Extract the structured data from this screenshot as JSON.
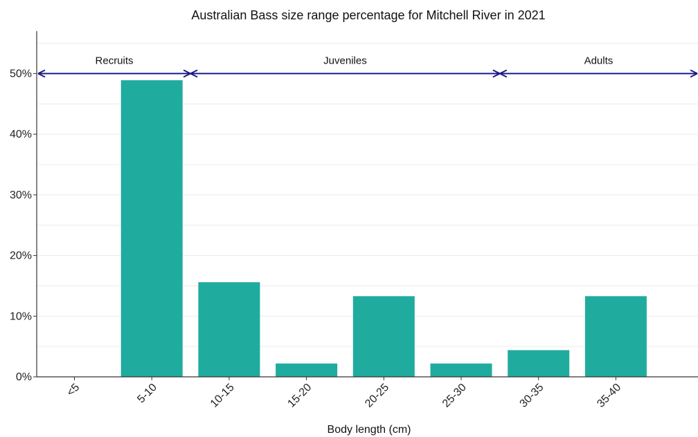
{
  "chart_data": {
    "type": "bar",
    "title": "Australian Bass size range percentage for Mitchell River in 2021",
    "xlabel": "Body length (cm)",
    "ylabel": "",
    "categories": [
      "<5",
      "5-10",
      "10-15",
      "15-20",
      "20-25",
      "25-30",
      "30-35",
      "35-40"
    ],
    "values": [
      0,
      48.9,
      15.6,
      2.2,
      13.3,
      2.2,
      4.4,
      13.3
    ],
    "ylim": [
      0,
      57
    ],
    "yticks": [
      0,
      10,
      20,
      30,
      40,
      50
    ],
    "ytick_labels": [
      "0%",
      "10%",
      "20%",
      "30%",
      "40%",
      "50%"
    ],
    "grid": true,
    "bar_color": "#20ab9f",
    "stages": {
      "y": 50,
      "arrow_color": "#1b1b86",
      "items": [
        {
          "label": "Recruits",
          "from": "<5",
          "to": "5-10"
        },
        {
          "label": "Juveniles",
          "from": "10-15",
          "to": "25-30"
        },
        {
          "label": "Adults",
          "from": "30-35",
          "to": "35-40"
        }
      ]
    }
  }
}
